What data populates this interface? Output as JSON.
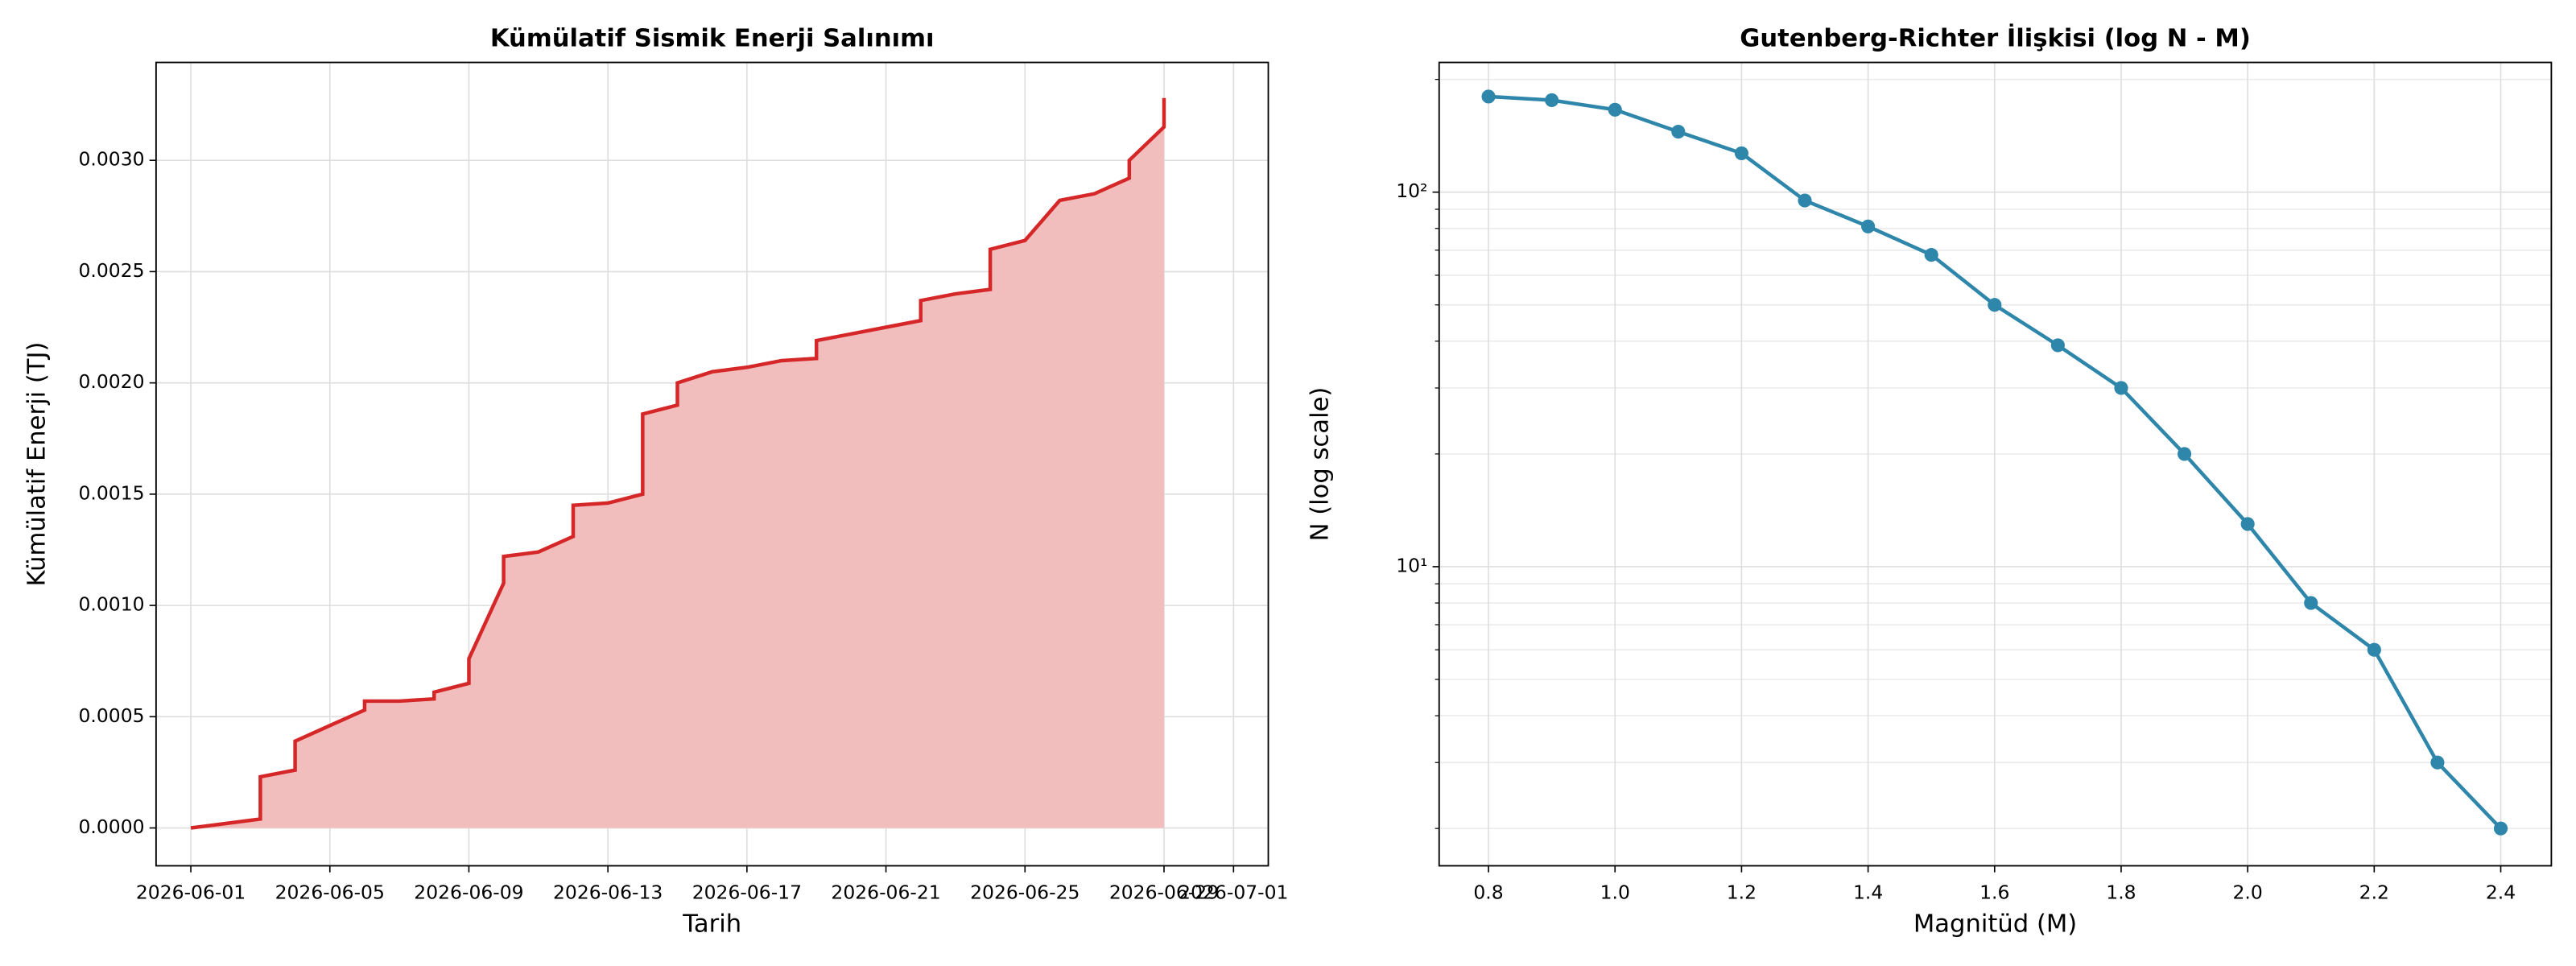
{
  "chart_data": [
    {
      "type": "area",
      "title": "Kümülatif Sismik Enerji Salınımı",
      "xlabel": "Tarih",
      "ylabel": "Kümülatif Enerji (TJ)",
      "color": "#d62728",
      "fill_color": "#f2bdbd",
      "grid": true,
      "x": [
        "2026-06-01",
        "2026-06-02",
        "2026-06-03",
        "2026-06-03",
        "2026-06-04",
        "2026-06-04",
        "2026-06-05",
        "2026-06-06",
        "2026-06-06",
        "2026-06-07",
        "2026-06-08",
        "2026-06-08",
        "2026-06-09",
        "2026-06-09",
        "2026-06-10",
        "2026-06-10",
        "2026-06-11",
        "2026-06-12",
        "2026-06-12",
        "2026-06-13",
        "2026-06-14",
        "2026-06-14",
        "2026-06-15",
        "2026-06-15",
        "2026-06-16",
        "2026-06-17",
        "2026-06-18",
        "2026-06-19",
        "2026-06-19",
        "2026-06-20",
        "2026-06-21",
        "2026-06-22",
        "2026-06-22",
        "2026-06-23",
        "2026-06-24",
        "2026-06-24",
        "2026-06-25",
        "2026-06-26",
        "2026-06-27",
        "2026-06-28",
        "2026-06-28",
        "2026-06-29",
        "2026-06-29"
      ],
      "values": [
        0.0,
        2e-05,
        4e-05,
        0.00023,
        0.00026,
        0.00039,
        0.00046,
        0.00053,
        0.00057,
        0.00057,
        0.00058,
        0.00061,
        0.00065,
        0.00076,
        0.0011,
        0.00122,
        0.00124,
        0.00131,
        0.00145,
        0.00146,
        0.0015,
        0.00186,
        0.0019,
        0.002,
        0.00205,
        0.00207,
        0.0021,
        0.00211,
        0.00219,
        0.00222,
        0.00225,
        0.00228,
        0.00237,
        0.0024,
        0.00242,
        0.0026,
        0.00264,
        0.00282,
        0.00285,
        0.00292,
        0.003,
        0.00315,
        0.00328
      ],
      "xlim": [
        "2026-05-31",
        "2026-07-02"
      ],
      "xticks": [
        "2026-06-01",
        "2026-06-05",
        "2026-06-09",
        "2026-06-13",
        "2026-06-17",
        "2026-06-21",
        "2026-06-25",
        "2026-06-29",
        "2026-07-01"
      ],
      "ylim": [
        -0.00017,
        0.00344
      ],
      "yticks": [
        {
          "value": 0,
          "label": "0.0000"
        },
        {
          "value": 0.0005,
          "label": "0.0005"
        },
        {
          "value": 0.001,
          "label": "0.0010"
        },
        {
          "value": 0.0015,
          "label": "0.0015"
        },
        {
          "value": 0.002,
          "label": "0.0020"
        },
        {
          "value": 0.0025,
          "label": "0.0025"
        },
        {
          "value": 0.003,
          "label": "0.0030"
        }
      ]
    },
    {
      "type": "line",
      "title": "Gutenberg-Richter İlişkisi (log N - M)",
      "xlabel": "Magnitüd (M)",
      "ylabel": "N (log scale)",
      "color": "#2e86ab",
      "grid": true,
      "log_y": true,
      "x": [
        0.8,
        0.9,
        1.0,
        1.1,
        1.2,
        1.3,
        1.4,
        1.5,
        1.6,
        1.7,
        1.8,
        1.9,
        2.0,
        2.1,
        2.2,
        2.3,
        2.4
      ],
      "values": [
        180,
        176,
        166,
        145,
        127,
        95,
        81,
        68,
        50,
        39,
        30,
        20,
        13,
        8,
        6,
        3,
        2
      ],
      "xlim": [
        0.722,
        2.48
      ],
      "xticks": [
        0.8,
        {
          "value": 1.0,
          "label": "1.0"
        },
        1.2,
        1.4,
        1.6,
        1.8,
        {
          "value": 2.0,
          "label": "2.0"
        },
        2.2,
        2.4
      ],
      "ylim": [
        1.59,
        222
      ],
      "yticks": [
        {
          "value": 10,
          "label": "10¹"
        },
        {
          "value": 100,
          "label": "10²"
        }
      ],
      "minor_yticks": [
        2,
        3,
        4,
        5,
        6,
        7,
        8,
        9,
        20,
        30,
        40,
        50,
        60,
        70,
        80,
        90,
        200
      ]
    }
  ]
}
